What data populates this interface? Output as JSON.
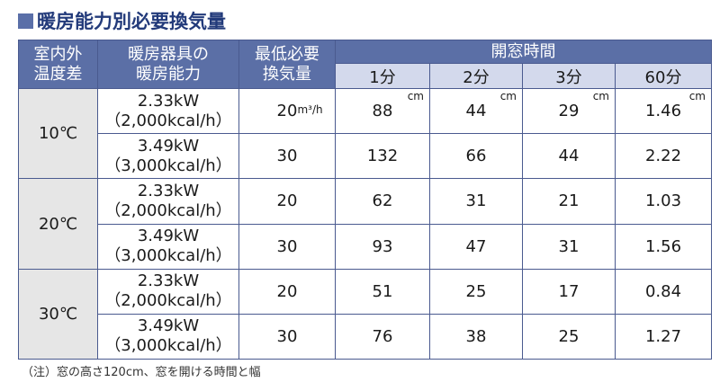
{
  "title": "暖房能力別必要換気量",
  "header": {
    "temp_diff": [
      "室内外",
      "温度差"
    ],
    "heater_capacity": [
      "暖房器具の",
      "暖房能力"
    ],
    "min_ventilation": [
      "最低必要",
      "換気量"
    ],
    "window_time": "開窓時間",
    "durations": [
      "1分",
      "2分",
      "3分",
      "60分"
    ]
  },
  "units": {
    "flow": "m³/h",
    "length": "cm"
  },
  "groups": [
    {
      "temp": "10℃",
      "rows": [
        {
          "kw": "2.33kW",
          "kcal": "（2,000kcal/h）",
          "vent": "20",
          "values": [
            "88",
            "44",
            "29",
            "1.46"
          ]
        },
        {
          "kw": "3.49kW",
          "kcal": "（3,000kcal/h）",
          "vent": "30",
          "values": [
            "132",
            "66",
            "44",
            "2.22"
          ]
        }
      ]
    },
    {
      "temp": "20℃",
      "rows": [
        {
          "kw": "2.33kW",
          "kcal": "（2,000kcal/h）",
          "vent": "20",
          "values": [
            "62",
            "31",
            "21",
            "1.03"
          ]
        },
        {
          "kw": "3.49kW",
          "kcal": "（3,000kcal/h）",
          "vent": "30",
          "values": [
            "93",
            "47",
            "31",
            "1.56"
          ]
        }
      ]
    },
    {
      "temp": "30℃",
      "rows": [
        {
          "kw": "2.33kW",
          "kcal": "（2,000kcal/h）",
          "vent": "20",
          "values": [
            "51",
            "25",
            "17",
            "0.84"
          ]
        },
        {
          "kw": "3.49kW",
          "kcal": "（3,000kcal/h）",
          "vent": "30",
          "values": [
            "76",
            "38",
            "25",
            "1.27"
          ]
        }
      ]
    }
  ],
  "note": "（注）窓の高さ120cm、窓を開ける時間と幅",
  "colors": {
    "header_bg": "#5b6fa6",
    "subheader_bg": "#d3d9ec",
    "temp_bg": "#e6e6e6",
    "title": "#223a7a",
    "border": "#4a5a8f"
  }
}
